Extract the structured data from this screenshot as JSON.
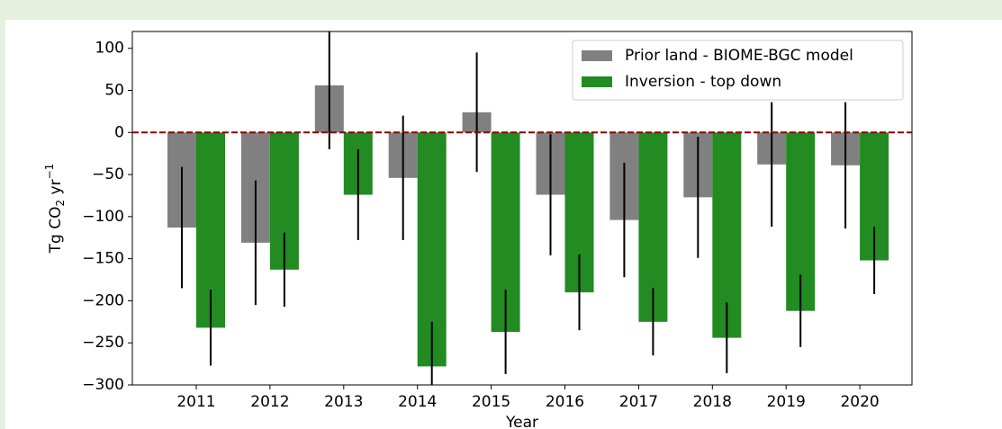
{
  "chart_data": {
    "type": "bar",
    "categories": [
      "2011",
      "2012",
      "2013",
      "2014",
      "2015",
      "2016",
      "2017",
      "2018",
      "2019",
      "2020"
    ],
    "series": [
      {
        "name": "Prior land - BIOME-BGC model",
        "color": "#808080",
        "values": [
          -113,
          -131,
          56,
          -54,
          24,
          -74,
          -104,
          -77,
          -38,
          -39
        ],
        "errors": [
          72,
          74,
          76,
          74,
          71,
          72,
          68,
          72,
          74,
          75
        ]
      },
      {
        "name": "Inversion - top down",
        "color": "#228b22",
        "values": [
          -232,
          -163,
          -74,
          -278,
          -237,
          -190,
          -225,
          -244,
          -212,
          -152
        ],
        "errors": [
          45,
          44,
          54,
          53,
          50,
          45,
          40,
          42,
          43,
          40
        ]
      }
    ],
    "ylim": [
      -300,
      120
    ],
    "yticks": [
      100,
      50,
      0,
      {
        "value": -50,
        "label": "−50"
      },
      {
        "value": -100,
        "label": "−100"
      },
      {
        "value": -150,
        "label": "−150"
      },
      {
        "value": -200,
        "label": "−200"
      },
      {
        "value": -250,
        "label": "−250"
      },
      {
        "value": -300,
        "label": "−300"
      }
    ],
    "ylabel": [
      "Tg CO",
      "2",
      " yr",
      "−1"
    ],
    "xlabel": "Year",
    "hline": {
      "value": 0,
      "color": "#8b0000"
    },
    "legend": "upper right"
  }
}
